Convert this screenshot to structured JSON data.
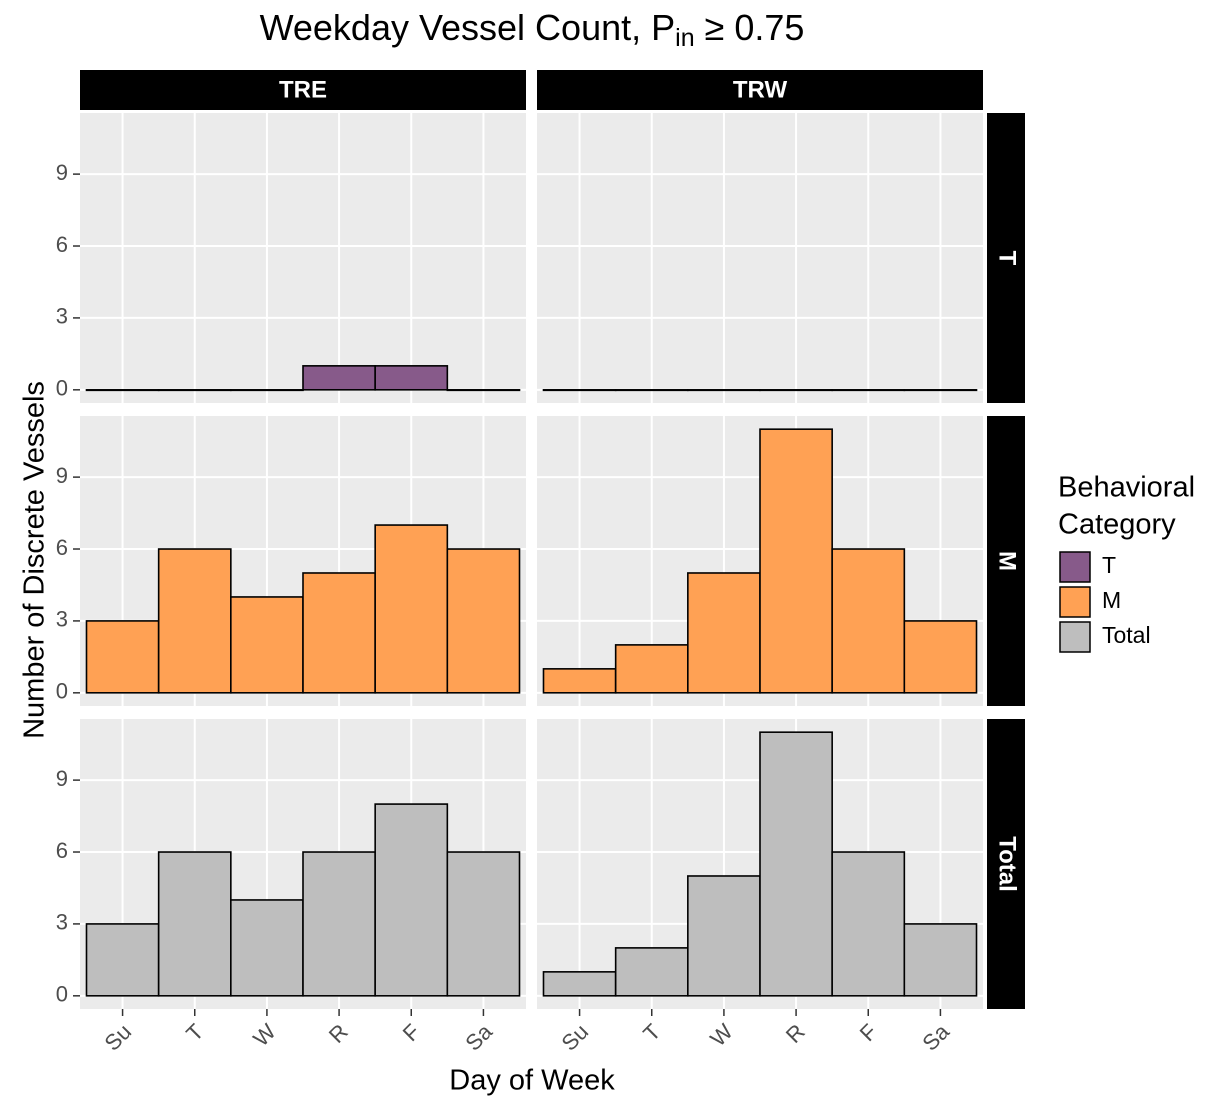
{
  "chart_data": {
    "type": "bar",
    "title": "Weekday Vessel Count, P",
    "title_subscript": "in",
    "title_suffix": " ≥ 0.75",
    "x_label": "Day of Week",
    "y_label": "Number of Discrete Vessels",
    "legend_title": [
      "Behavioral",
      "Category"
    ],
    "categories": [
      "Su",
      "T",
      "W",
      "R",
      "F",
      "Sa"
    ],
    "columns": [
      "TRE",
      "TRW"
    ],
    "rows": [
      "T",
      "M",
      "Total"
    ],
    "series": [
      {
        "name": "T",
        "color": "#875a8a",
        "values": [
          [
            0,
            0,
            0,
            1,
            1,
            0
          ],
          [
            0,
            0,
            0,
            0,
            0,
            0
          ]
        ]
      },
      {
        "name": "M",
        "color": "#ffa154",
        "values": [
          [
            3,
            6,
            4,
            5,
            7,
            6
          ],
          [
            1,
            2,
            5,
            11,
            6,
            3
          ]
        ]
      },
      {
        "name": "Total",
        "color": "#bebebe",
        "values": [
          [
            3,
            6,
            4,
            6,
            8,
            6
          ],
          [
            1,
            2,
            5,
            11,
            6,
            3
          ]
        ]
      }
    ],
    "ylim": [
      -0.55,
      11.55
    ],
    "yticks": [
      0,
      3,
      6,
      9
    ],
    "grid": true
  }
}
